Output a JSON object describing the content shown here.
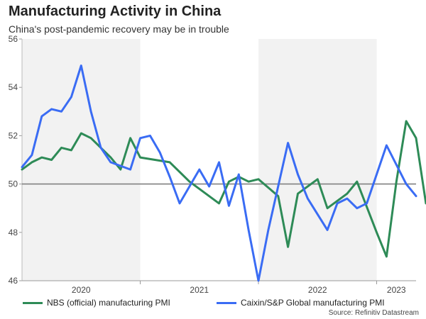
{
  "chart_data": {
    "type": "line",
    "title": "Manufacturing Activity in China",
    "subtitle": "China's post-pandemic recovery may be in trouble",
    "source": "Source: Refinitiv Datastream",
    "ylim": [
      46,
      56
    ],
    "yticks": [
      "46",
      "48",
      "50",
      "52",
      "54",
      "56"
    ],
    "reference_line": 50,
    "x_start": [
      2020,
      1
    ],
    "x_end": [
      2023,
      5
    ],
    "year_labels": [
      {
        "label": "2020",
        "year": 2020,
        "month": 7
      },
      {
        "label": "2021",
        "year": 2021,
        "month": 7
      },
      {
        "label": "2022",
        "year": 2022,
        "month": 7
      },
      {
        "label": "2023",
        "year": 2023,
        "month": 3
      }
    ],
    "shaded_years": [
      2020,
      2022
    ],
    "colors": {
      "nbs": "#2e8b57",
      "caixin": "#3a6cf4",
      "shade": "#f2f2f2",
      "refline": "#808080"
    },
    "series": [
      {
        "name": "NBS (official) manufacturing PMI",
        "color": "#2e8b57",
        "points": [
          [
            2020,
            1,
            50.6
          ],
          [
            2020,
            2,
            50.9
          ],
          [
            2020,
            3,
            51.1
          ],
          [
            2020,
            4,
            51.0
          ],
          [
            2020,
            5,
            51.5
          ],
          [
            2020,
            6,
            51.4
          ],
          [
            2020,
            7,
            52.1
          ],
          [
            2020,
            8,
            51.9
          ],
          [
            2020,
            10,
            51.1
          ],
          [
            2020,
            11,
            50.6
          ],
          [
            2020,
            12,
            51.9
          ],
          [
            2021,
            1,
            51.1
          ],
          [
            2021,
            4,
            50.9
          ],
          [
            2021,
            6,
            50.1
          ],
          [
            2021,
            7,
            49.8
          ],
          [
            2021,
            9,
            49.2
          ],
          [
            2021,
            10,
            50.1
          ],
          [
            2021,
            11,
            50.3
          ],
          [
            2021,
            12,
            50.1
          ],
          [
            2022,
            1,
            50.2
          ],
          [
            2022,
            3,
            49.5
          ],
          [
            2022,
            4,
            47.4
          ],
          [
            2022,
            5,
            49.6
          ],
          [
            2022,
            7,
            50.2
          ],
          [
            2022,
            8,
            49.0
          ],
          [
            2022,
            10,
            49.6
          ],
          [
            2022,
            11,
            50.1
          ],
          [
            2023,
            1,
            48.0
          ],
          [
            2023,
            2,
            47.0
          ],
          [
            2023,
            3,
            50.1
          ],
          [
            2023,
            4,
            52.6
          ],
          [
            2023,
            5,
            51.9
          ],
          [
            2023,
            6,
            49.2
          ]
        ]
      },
      {
        "name": "Caixin/S&P Global manufacturing PMI",
        "color": "#3a6cf4",
        "points": [
          [
            2020,
            1,
            50.7
          ],
          [
            2020,
            2,
            51.2
          ],
          [
            2020,
            3,
            52.8
          ],
          [
            2020,
            4,
            53.1
          ],
          [
            2020,
            5,
            53.0
          ],
          [
            2020,
            6,
            53.6
          ],
          [
            2020,
            7,
            54.9
          ],
          [
            2020,
            8,
            53.0
          ],
          [
            2020,
            9,
            51.5
          ],
          [
            2020,
            10,
            50.9
          ],
          [
            2020,
            12,
            50.6
          ],
          [
            2021,
            1,
            51.9
          ],
          [
            2021,
            2,
            52.0
          ],
          [
            2021,
            3,
            51.3
          ],
          [
            2021,
            4,
            50.3
          ],
          [
            2021,
            5,
            49.2
          ],
          [
            2021,
            7,
            50.6
          ],
          [
            2021,
            8,
            49.9
          ],
          [
            2021,
            9,
            50.9
          ],
          [
            2021,
            10,
            49.1
          ],
          [
            2021,
            11,
            50.4
          ],
          [
            2021,
            12,
            48.1
          ],
          [
            2022,
            1,
            46.0
          ],
          [
            2022,
            2,
            48.1
          ],
          [
            2022,
            4,
            51.7
          ],
          [
            2022,
            5,
            50.4
          ],
          [
            2022,
            6,
            49.4
          ],
          [
            2022,
            8,
            48.1
          ],
          [
            2022,
            9,
            49.2
          ],
          [
            2022,
            10,
            49.4
          ],
          [
            2022,
            11,
            49.0
          ],
          [
            2022,
            12,
            49.2
          ],
          [
            2023,
            2,
            51.6
          ],
          [
            2023,
            4,
            50.0
          ],
          [
            2023,
            5,
            49.5
          ]
        ]
      }
    ]
  }
}
